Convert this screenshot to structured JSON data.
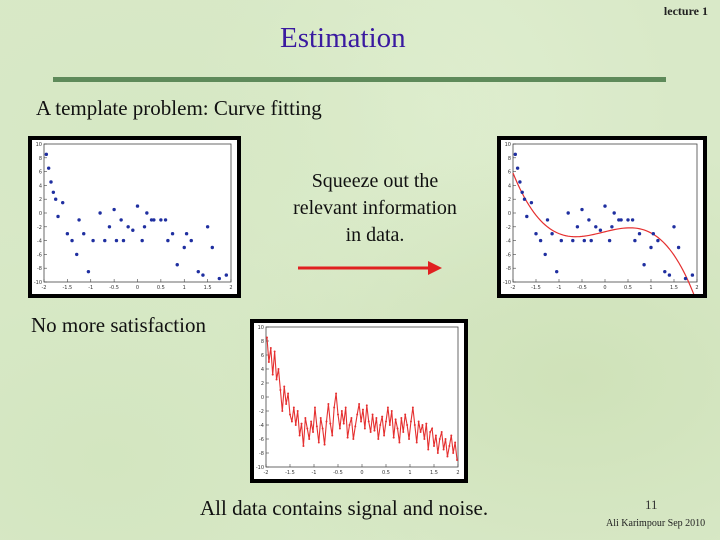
{
  "header": {
    "lecture_label": "lecture 1",
    "title": "Estimation"
  },
  "subtitle": "A template problem: Curve fitting",
  "squeeze_text": "Squeeze out the\nrelevant information\nin data.",
  "no_more_text": "No more satisfaction",
  "all_data_text": "All data contains signal and noise.",
  "footer": {
    "page_number": "11",
    "author": "Ali Karimpour Sep 2010"
  },
  "colors": {
    "title": "#3a1aa0",
    "arrow": "#e02020",
    "fit_curve": "#e53030",
    "points": "#1f2fa0"
  },
  "charts": {
    "yticks": [
      "10",
      "8",
      "6",
      "4",
      "2",
      "0",
      "-2",
      "-4",
      "-6",
      "-8",
      "-10"
    ],
    "xticks": [
      "-2",
      "-1.5",
      "-1",
      "-0.5",
      "0",
      "0.5",
      "1",
      "1.5",
      "2"
    ],
    "scatter": {
      "x": [
        -1.95,
        -1.9,
        -1.85,
        -1.8,
        -1.75,
        -1.7,
        -1.6,
        -1.5,
        -1.4,
        -1.3,
        -1.25,
        -1.15,
        -1.05,
        -0.95,
        -0.8,
        -0.7,
        -0.6,
        -0.5,
        -0.45,
        -0.35,
        -0.3,
        -0.2,
        -0.1,
        0,
        0.1,
        0.15,
        0.2,
        0.3,
        0.35,
        0.5,
        0.6,
        0.65,
        0.75,
        0.85,
        1.0,
        1.05,
        1.15,
        1.3,
        1.4,
        1.5,
        1.6,
        1.75,
        1.9
      ],
      "y": [
        8.5,
        6.5,
        4.5,
        3,
        2,
        -0.5,
        1.5,
        -3,
        -4,
        -6,
        -1,
        -3,
        -8.5,
        -4,
        0,
        -4,
        -2,
        0.5,
        -4,
        -1,
        -4,
        -2,
        -2.5,
        1,
        -4,
        -2,
        0,
        -1,
        -1,
        -1,
        -1,
        -4,
        -3,
        -7.5,
        -5,
        -3,
        -4,
        -8.5,
        -9,
        -2,
        -5,
        -9.5,
        -9
      ]
    },
    "fit_range": [
      -2,
      2
    ],
    "noisy_series": [
      [
        -1.98,
        8.5
      ],
      [
        -1.94,
        5
      ],
      [
        -1.9,
        7
      ],
      [
        -1.86,
        3.2
      ],
      [
        -1.82,
        6.5
      ],
      [
        -1.78,
        2.5
      ],
      [
        -1.74,
        4
      ],
      [
        -1.7,
        1
      ],
      [
        -1.66,
        -2
      ],
      [
        -1.62,
        1.5
      ],
      [
        -1.58,
        -1
      ],
      [
        -1.54,
        0.5
      ],
      [
        -1.5,
        -2.5
      ],
      [
        -1.46,
        -3.5
      ],
      [
        -1.42,
        -1.5
      ],
      [
        -1.38,
        -4
      ],
      [
        -1.34,
        -2
      ],
      [
        -1.3,
        -5.5
      ],
      [
        -1.26,
        -3.8
      ],
      [
        -1.22,
        -7
      ],
      [
        -1.18,
        -3
      ],
      [
        -1.14,
        -4.5
      ],
      [
        -1.1,
        -6
      ],
      [
        -1.06,
        -3.5
      ],
      [
        -1.02,
        -5
      ],
      [
        -0.98,
        -1.5
      ],
      [
        -0.94,
        -4.2
      ],
      [
        -0.9,
        -6.5
      ],
      [
        -0.86,
        -3
      ],
      [
        -0.82,
        -4.5
      ],
      [
        -0.78,
        -6.8
      ],
      [
        -0.74,
        -3.5
      ],
      [
        -0.7,
        -1
      ],
      [
        -0.66,
        -3.8
      ],
      [
        -0.62,
        -5.5
      ],
      [
        -0.58,
        -1.5
      ],
      [
        -0.54,
        0.5
      ],
      [
        -0.5,
        -2.5
      ],
      [
        -0.46,
        -4.5
      ],
      [
        -0.42,
        -2
      ],
      [
        -0.38,
        -3.8
      ],
      [
        -0.34,
        -1.5
      ],
      [
        -0.3,
        -5.8
      ],
      [
        -0.26,
        -4
      ],
      [
        -0.22,
        -3
      ],
      [
        -0.18,
        -6
      ],
      [
        -0.14,
        -4.2
      ],
      [
        -0.1,
        -2.5
      ],
      [
        -0.06,
        -1
      ],
      [
        -0.02,
        -3.5
      ],
      [
        0.02,
        -1.8
      ],
      [
        0.06,
        -4.5
      ],
      [
        0.1,
        -1.2
      ],
      [
        0.14,
        -3.5
      ],
      [
        0.18,
        -5
      ],
      [
        0.22,
        -2.5
      ],
      [
        0.26,
        -4.8
      ],
      [
        0.3,
        -3
      ],
      [
        0.34,
        -6
      ],
      [
        0.38,
        -4
      ],
      [
        0.42,
        -2.8
      ],
      [
        0.46,
        -5.5
      ],
      [
        0.5,
        -3.5
      ],
      [
        0.54,
        -1.5
      ],
      [
        0.58,
        -4
      ],
      [
        0.62,
        -2
      ],
      [
        0.66,
        -5.8
      ],
      [
        0.7,
        -3.2
      ],
      [
        0.74,
        -4.5
      ],
      [
        0.78,
        -6.5
      ],
      [
        0.82,
        -3
      ],
      [
        0.86,
        -5
      ],
      [
        0.9,
        -2.5
      ],
      [
        0.94,
        -4
      ],
      [
        0.98,
        -6
      ],
      [
        1.02,
        -3.5
      ],
      [
        1.06,
        -1.5
      ],
      [
        1.1,
        -4
      ],
      [
        1.14,
        -6.5
      ],
      [
        1.18,
        -3.5
      ],
      [
        1.22,
        -5
      ],
      [
        1.26,
        -4
      ],
      [
        1.3,
        -6
      ],
      [
        1.34,
        -3.8
      ],
      [
        1.38,
        -7.5
      ],
      [
        1.42,
        -5
      ],
      [
        1.46,
        -4.5
      ],
      [
        1.5,
        -7
      ],
      [
        1.54,
        -5.5
      ],
      [
        1.58,
        -8
      ],
      [
        1.62,
        -6
      ],
      [
        1.66,
        -5
      ],
      [
        1.7,
        -7.5
      ],
      [
        1.74,
        -6
      ],
      [
        1.78,
        -8.5
      ],
      [
        1.82,
        -7
      ],
      [
        1.86,
        -5.5
      ],
      [
        1.9,
        -8
      ],
      [
        1.94,
        -6.5
      ],
      [
        1.98,
        -9
      ]
    ]
  }
}
